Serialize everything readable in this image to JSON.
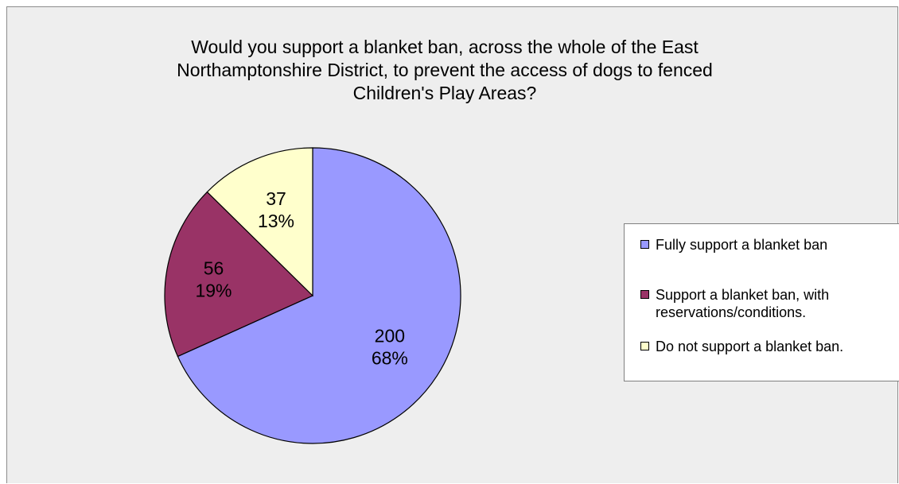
{
  "chart_data": {
    "type": "pie",
    "title": "Would you support a blanket ban, across the whole of the East Northamptonshire District, to prevent the access of dogs to fenced Children's Play Areas?",
    "title_lines": [
      "Would you support a blanket ban, across the whole of the East",
      "Northamptonshire District, to prevent the access of dogs to fenced",
      "Children's Play Areas?"
    ],
    "categories": [
      "Fully support a blanket ban",
      "Support a blanket ban, with reservations/conditions.",
      "Do not support a blanket ban."
    ],
    "values": [
      200,
      56,
      37
    ],
    "percent_labels": [
      "68%",
      "19%",
      "13%"
    ],
    "value_labels": [
      "200",
      "56",
      "37"
    ],
    "colors": [
      "#9999ff",
      "#993366",
      "#ffffcc"
    ],
    "legend_position": "right",
    "legend": [
      {
        "lines": [
          "Fully support a blanket ban"
        ]
      },
      {
        "lines": [
          "Support a blanket ban, with",
          "reservations/conditions."
        ]
      },
      {
        "lines": [
          "Do not support a blanket ban."
        ]
      }
    ]
  }
}
